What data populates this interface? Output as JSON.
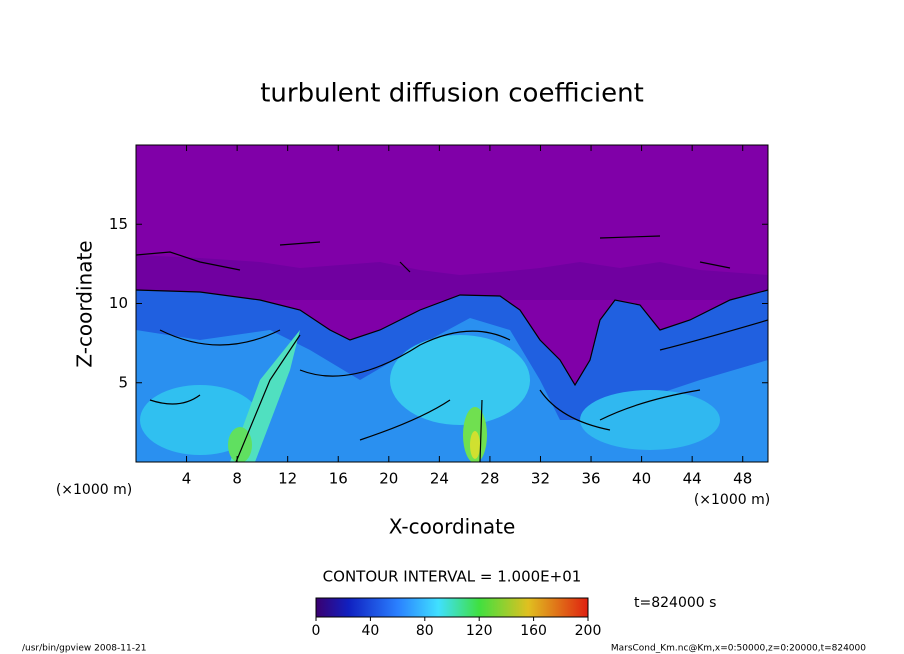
{
  "chart_data": {
    "type": "contour",
    "title": "turbulent diffusion coefficient",
    "xlabel": "X-coordinate",
    "ylabel": "Z-coordinate",
    "x_unit": "(×1000 m)",
    "y_unit": "(×1000 m)",
    "xlim": [
      0,
      50
    ],
    "xticks": [
      4,
      8,
      12,
      16,
      20,
      24,
      28,
      32,
      36,
      40,
      44,
      48
    ],
    "ylim": [
      0,
      20
    ],
    "yticks": [
      5,
      10,
      15
    ],
    "contour_interval": "CONTOUR INTERVAL = 1.000E+01",
    "clim": [
      0,
      200
    ],
    "cticks": [
      0,
      40,
      80,
      120,
      160,
      200
    ],
    "time_label": "t=824000 s",
    "footer_left": "/usr/bin/gpview  2008-11-21",
    "footer_right": "MarsCond_Km.nc@Km,x=0:50000,z=0:20000,t=824000"
  }
}
